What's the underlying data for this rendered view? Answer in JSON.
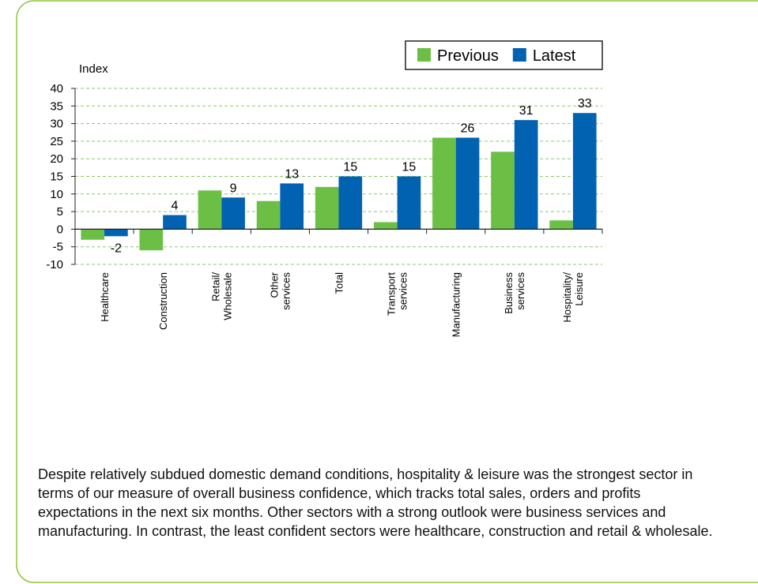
{
  "chart_data": {
    "type": "bar",
    "ylabel": "Index",
    "categories": [
      "Healthcare",
      "Construction",
      "Retail/ Wholesale",
      "Other services",
      "Total",
      "Transport services",
      "Manufacturing",
      "Business services",
      "Hospitality/ Leisure"
    ],
    "series": [
      {
        "name": "Previous",
        "color": "#6cbf45",
        "values": [
          -3,
          -6,
          11,
          8,
          12,
          2,
          26,
          22,
          2.5
        ]
      },
      {
        "name": "Latest",
        "color": "#0062b1",
        "values": [
          -2,
          4,
          9,
          13,
          15,
          15,
          26,
          31,
          33
        ]
      }
    ],
    "labeled_series": "Latest",
    "ylim": [
      -10,
      40
    ],
    "yticks": [
      -10,
      -5,
      0,
      5,
      10,
      15,
      20,
      25,
      30,
      35,
      40
    ],
    "grid": true
  },
  "caption": "Despite relatively subdued domestic demand conditions, hospitality & leisure was the strongest sector in terms of our measure of overall business confidence, which tracks total sales, orders and profits expectations in the next six months. Other sectors with a strong outlook were business services and manufacturing. In contrast, the least confident sectors were healthcare, construction and retail & wholesale."
}
